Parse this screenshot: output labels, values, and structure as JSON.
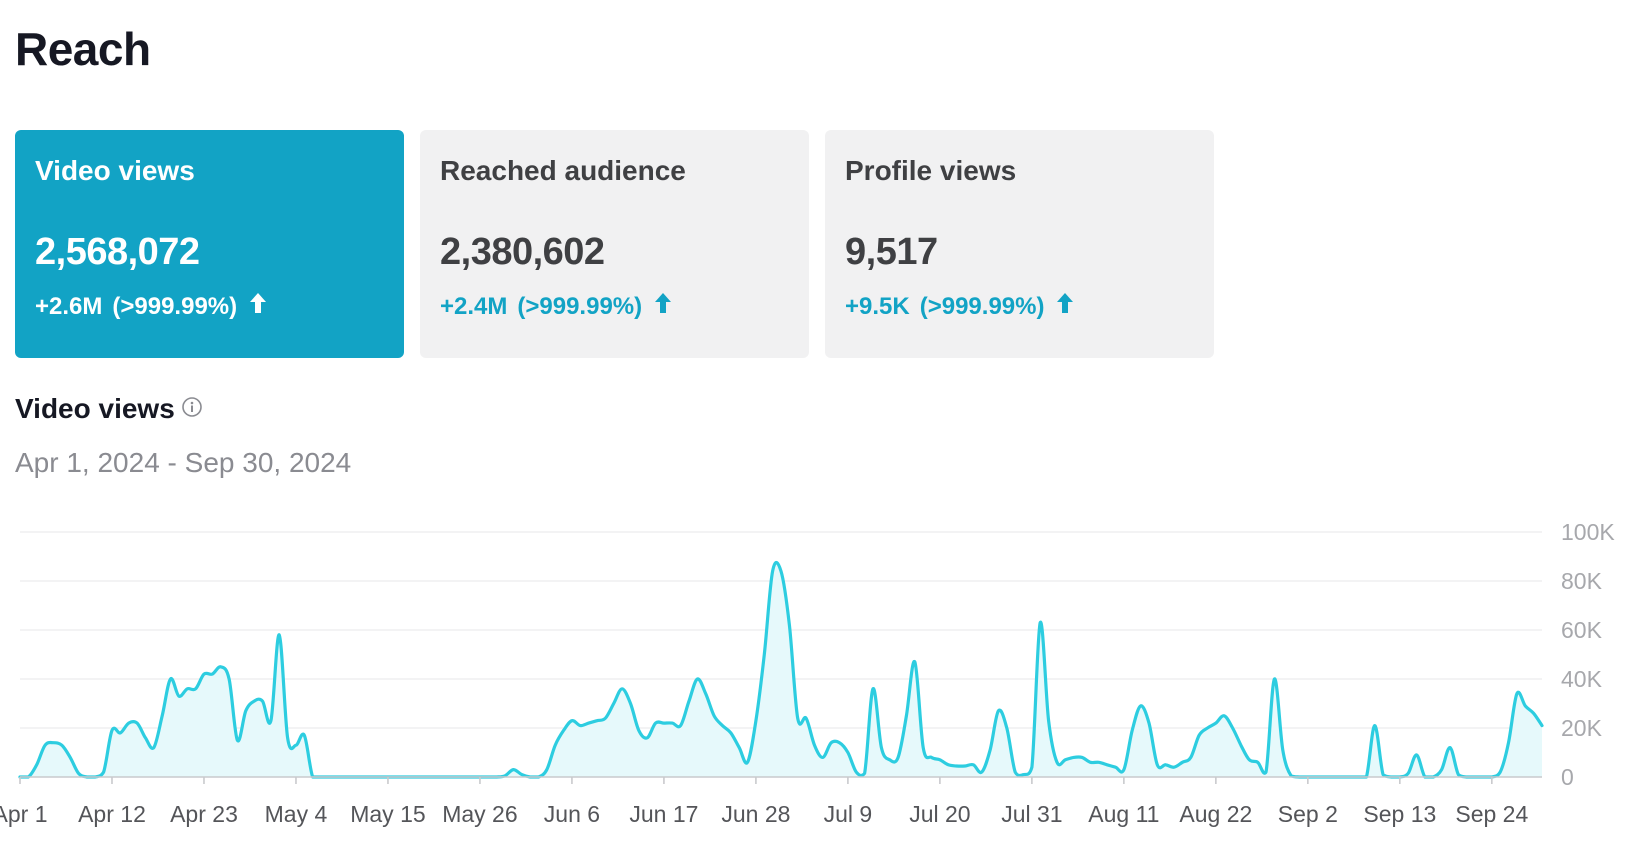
{
  "page": {
    "title": "Reach"
  },
  "cards": [
    {
      "title": "Video views",
      "value": "2,568,072",
      "change": "+2.6M",
      "pct": "(>999.99%)",
      "active": true,
      "icon": "arrow-up-icon"
    },
    {
      "title": "Reached audience",
      "value": "2,380,602",
      "change": "+2.4M",
      "pct": "(>999.99%)",
      "active": false,
      "icon": "arrow-up-icon"
    },
    {
      "title": "Profile views",
      "value": "9,517",
      "change": "+9.5K",
      "pct": "(>999.99%)",
      "active": false,
      "icon": "arrow-up-icon"
    }
  ],
  "colors": {
    "accent": "#12a3c5",
    "line": "#2dcde0",
    "area": "#e6f9fb",
    "card_bg": "#f1f1f2",
    "grid": "#ececee"
  },
  "chart_section": {
    "title": "Video views",
    "info_icon": "info-circle-icon",
    "date_range": "Apr 1, 2024 - Sep 30, 2024"
  },
  "chart_data": {
    "type": "area",
    "title": "",
    "xlabel": "",
    "ylabel": "",
    "ylim": [
      0,
      100000
    ],
    "y_ticks": [
      0,
      20000,
      40000,
      60000,
      80000,
      100000
    ],
    "y_tick_labels": [
      "0",
      "20K",
      "40K",
      "60K",
      "80K",
      "100K"
    ],
    "y_axis_position": "right",
    "grid": true,
    "x_range": [
      "2024-04-01",
      "2024-09-30"
    ],
    "x_ticks": [
      "2024-04-01",
      "2024-04-12",
      "2024-04-23",
      "2024-05-04",
      "2024-05-15",
      "2024-05-26",
      "2024-06-06",
      "2024-06-17",
      "2024-06-28",
      "2024-07-09",
      "2024-07-20",
      "2024-07-31",
      "2024-08-11",
      "2024-08-22",
      "2024-09-02",
      "2024-09-13",
      "2024-09-24"
    ],
    "x_tick_labels": [
      "Apr 1",
      "Apr 12",
      "Apr 23",
      "May 4",
      "May 15",
      "May 26",
      "Jun 6",
      "Jun 17",
      "Jun 28",
      "Jul 9",
      "Jul 20",
      "Jul 31",
      "Aug 11",
      "Aug 22",
      "Sep 2",
      "Sep 13",
      "Sep 24"
    ],
    "series": [
      {
        "points": [
          [
            "2024-04-01",
            0
          ],
          [
            "2024-04-02",
            0
          ],
          [
            "2024-04-03",
            5000
          ],
          [
            "2024-04-04",
            13000
          ],
          [
            "2024-04-05",
            14000
          ],
          [
            "2024-04-06",
            13000
          ],
          [
            "2024-04-07",
            8000
          ],
          [
            "2024-04-08",
            1500
          ],
          [
            "2024-04-09",
            0
          ],
          [
            "2024-04-10",
            0
          ],
          [
            "2024-04-11",
            2000
          ],
          [
            "2024-04-12",
            19000
          ],
          [
            "2024-04-13",
            18000
          ],
          [
            "2024-04-14",
            22000
          ],
          [
            "2024-04-15",
            22000
          ],
          [
            "2024-04-16",
            16000
          ],
          [
            "2024-04-17",
            12000
          ],
          [
            "2024-04-18",
            25000
          ],
          [
            "2024-04-19",
            40000
          ],
          [
            "2024-04-20",
            33000
          ],
          [
            "2024-04-21",
            36000
          ],
          [
            "2024-04-22",
            36000
          ],
          [
            "2024-04-23",
            42000
          ],
          [
            "2024-04-24",
            42000
          ],
          [
            "2024-04-25",
            45000
          ],
          [
            "2024-04-26",
            40000
          ],
          [
            "2024-04-27",
            15000
          ],
          [
            "2024-04-28",
            27000
          ],
          [
            "2024-04-29",
            31000
          ],
          [
            "2024-04-30",
            31000
          ],
          [
            "2024-05-01",
            23000
          ],
          [
            "2024-05-02",
            58000
          ],
          [
            "2024-05-03",
            16000
          ],
          [
            "2024-05-04",
            13000
          ],
          [
            "2024-05-05",
            17000
          ],
          [
            "2024-05-06",
            0
          ],
          [
            "2024-05-07",
            0
          ],
          [
            "2024-05-08",
            0
          ],
          [
            "2024-05-09",
            0
          ],
          [
            "2024-05-10",
            0
          ],
          [
            "2024-05-11",
            0
          ],
          [
            "2024-05-12",
            0
          ],
          [
            "2024-05-13",
            0
          ],
          [
            "2024-05-14",
            0
          ],
          [
            "2024-05-15",
            0
          ],
          [
            "2024-05-16",
            0
          ],
          [
            "2024-05-17",
            0
          ],
          [
            "2024-05-18",
            0
          ],
          [
            "2024-05-19",
            0
          ],
          [
            "2024-05-20",
            0
          ],
          [
            "2024-05-21",
            0
          ],
          [
            "2024-05-22",
            0
          ],
          [
            "2024-05-23",
            0
          ],
          [
            "2024-05-24",
            0
          ],
          [
            "2024-05-25",
            0
          ],
          [
            "2024-05-26",
            0
          ],
          [
            "2024-05-27",
            0
          ],
          [
            "2024-05-28",
            0
          ],
          [
            "2024-05-29",
            500
          ],
          [
            "2024-05-30",
            3000
          ],
          [
            "2024-05-31",
            1000
          ],
          [
            "2024-06-01",
            0
          ],
          [
            "2024-06-02",
            0
          ],
          [
            "2024-06-03",
            3000
          ],
          [
            "2024-06-04",
            13000
          ],
          [
            "2024-06-05",
            19000
          ],
          [
            "2024-06-06",
            23000
          ],
          [
            "2024-06-07",
            21000
          ],
          [
            "2024-06-08",
            22000
          ],
          [
            "2024-06-09",
            23000
          ],
          [
            "2024-06-10",
            24000
          ],
          [
            "2024-06-11",
            30000
          ],
          [
            "2024-06-12",
            36000
          ],
          [
            "2024-06-13",
            30000
          ],
          [
            "2024-06-14",
            19000
          ],
          [
            "2024-06-15",
            16000
          ],
          [
            "2024-06-16",
            22000
          ],
          [
            "2024-06-17",
            22000
          ],
          [
            "2024-06-18",
            22000
          ],
          [
            "2024-06-19",
            21000
          ],
          [
            "2024-06-20",
            31000
          ],
          [
            "2024-06-21",
            40000
          ],
          [
            "2024-06-22",
            34000
          ],
          [
            "2024-06-23",
            25000
          ],
          [
            "2024-06-24",
            21000
          ],
          [
            "2024-06-25",
            18000
          ],
          [
            "2024-06-26",
            12000
          ],
          [
            "2024-06-27",
            6000
          ],
          [
            "2024-06-28",
            23000
          ],
          [
            "2024-06-29",
            50000
          ],
          [
            "2024-06-30",
            84000
          ],
          [
            "2024-07-01",
            84000
          ],
          [
            "2024-07-02",
            62000
          ],
          [
            "2024-07-03",
            24000
          ],
          [
            "2024-07-04",
            24000
          ],
          [
            "2024-07-05",
            13000
          ],
          [
            "2024-07-06",
            8000
          ],
          [
            "2024-07-07",
            14000
          ],
          [
            "2024-07-08",
            14000
          ],
          [
            "2024-07-09",
            10000
          ],
          [
            "2024-07-10",
            2000
          ],
          [
            "2024-07-11",
            1500
          ],
          [
            "2024-07-12",
            36000
          ],
          [
            "2024-07-13",
            12000
          ],
          [
            "2024-07-14",
            7000
          ],
          [
            "2024-07-15",
            8000
          ],
          [
            "2024-07-16",
            25000
          ],
          [
            "2024-07-17",
            47000
          ],
          [
            "2024-07-18",
            12000
          ],
          [
            "2024-07-19",
            8000
          ],
          [
            "2024-07-20",
            7000
          ],
          [
            "2024-07-21",
            5000
          ],
          [
            "2024-07-22",
            4500
          ],
          [
            "2024-07-23",
            4500
          ],
          [
            "2024-07-24",
            5000
          ],
          [
            "2024-07-25",
            2000
          ],
          [
            "2024-07-26",
            11000
          ],
          [
            "2024-07-27",
            27000
          ],
          [
            "2024-07-28",
            20000
          ],
          [
            "2024-07-29",
            2000
          ],
          [
            "2024-07-30",
            1000
          ],
          [
            "2024-07-31",
            4000
          ],
          [
            "2024-08-01",
            63000
          ],
          [
            "2024-08-02",
            23000
          ],
          [
            "2024-08-03",
            6000
          ],
          [
            "2024-08-04",
            7000
          ],
          [
            "2024-08-05",
            8000
          ],
          [
            "2024-08-06",
            8000
          ],
          [
            "2024-08-07",
            6000
          ],
          [
            "2024-08-08",
            6000
          ],
          [
            "2024-08-09",
            5000
          ],
          [
            "2024-08-10",
            4000
          ],
          [
            "2024-08-11",
            3000
          ],
          [
            "2024-08-12",
            19000
          ],
          [
            "2024-08-13",
            29000
          ],
          [
            "2024-08-14",
            22000
          ],
          [
            "2024-08-15",
            5000
          ],
          [
            "2024-08-16",
            5000
          ],
          [
            "2024-08-17",
            4000
          ],
          [
            "2024-08-18",
            6000
          ],
          [
            "2024-08-19",
            8000
          ],
          [
            "2024-08-20",
            17000
          ],
          [
            "2024-08-21",
            20000
          ],
          [
            "2024-08-22",
            22000
          ],
          [
            "2024-08-23",
            25000
          ],
          [
            "2024-08-24",
            20000
          ],
          [
            "2024-08-25",
            13000
          ],
          [
            "2024-08-26",
            7000
          ],
          [
            "2024-08-27",
            6000
          ],
          [
            "2024-08-28",
            2000
          ],
          [
            "2024-08-29",
            40000
          ],
          [
            "2024-08-30",
            11000
          ],
          [
            "2024-08-31",
            500
          ],
          [
            "2024-09-01",
            0
          ],
          [
            "2024-09-02",
            0
          ],
          [
            "2024-09-03",
            0
          ],
          [
            "2024-09-04",
            0
          ],
          [
            "2024-09-05",
            0
          ],
          [
            "2024-09-06",
            0
          ],
          [
            "2024-09-07",
            0
          ],
          [
            "2024-09-08",
            0
          ],
          [
            "2024-09-09",
            0
          ],
          [
            "2024-09-10",
            21000
          ],
          [
            "2024-09-11",
            1000
          ],
          [
            "2024-09-12",
            0
          ],
          [
            "2024-09-13",
            0
          ],
          [
            "2024-09-14",
            1500
          ],
          [
            "2024-09-15",
            9000
          ],
          [
            "2024-09-16",
            0
          ],
          [
            "2024-09-17",
            0
          ],
          [
            "2024-09-18",
            3000
          ],
          [
            "2024-09-19",
            12000
          ],
          [
            "2024-09-20",
            1000
          ],
          [
            "2024-09-21",
            0
          ],
          [
            "2024-09-22",
            0
          ],
          [
            "2024-09-23",
            0
          ],
          [
            "2024-09-24",
            0
          ],
          [
            "2024-09-25",
            2000
          ],
          [
            "2024-09-26",
            14000
          ],
          [
            "2024-09-27",
            34000
          ],
          [
            "2024-09-28",
            29000
          ],
          [
            "2024-09-29",
            26000
          ],
          [
            "2024-09-30",
            21000
          ]
        ]
      }
    ]
  }
}
